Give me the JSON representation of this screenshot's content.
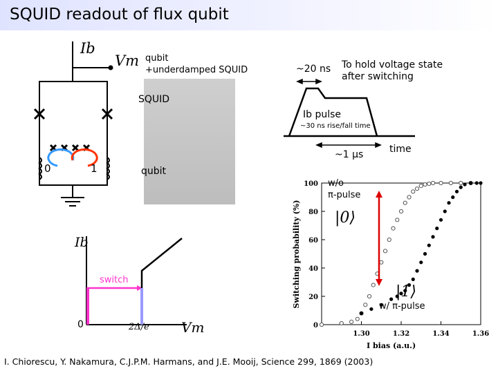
{
  "title": "SQUID readout of flux qubit",
  "circuit": {
    "ib_label": "Ib",
    "vm_label": "Vm",
    "state0": "0",
    "state1": "1"
  },
  "photo": {
    "top_label": "qubit\n+underdamped SQUID",
    "squid_label": "SQUID",
    "qubit_label": "qubit"
  },
  "pulse": {
    "rise_label": "~20 ns",
    "hold_label": "To hold voltage state\nafter switching",
    "ib_pulse_label": "Ib pulse",
    "rise_fall_note": "~30 ns rise/fall time",
    "duration_label": "~1 µs",
    "time_label": "time"
  },
  "iv_curve": {
    "y_label": "Ib",
    "x_label": "Vm",
    "gap_label": "2Δ/e",
    "origin_label": "0",
    "switch_label": "switch",
    "colors": {
      "zero_branch": "#ff33cc",
      "switch_line": "#9999ff"
    }
  },
  "chart_data": {
    "type": "scatter",
    "xlabel": "I bias (a.u.)",
    "ylabel": "Switching probability (%)",
    "xlim": [
      1.28,
      1.36
    ],
    "ylim": [
      0,
      100
    ],
    "x_ticks": [
      "1.30",
      "1.32",
      "1.34",
      "1.36"
    ],
    "y_ticks": [
      "0",
      "20",
      "40",
      "60",
      "80",
      "100"
    ],
    "annotations": {
      "without_pi": "w/o\nπ-pulse",
      "with_pi": "w/ π-pulse",
      "ket0": "|0⟩",
      "ket1": "|1⟩"
    },
    "series": [
      {
        "marker": "open-circle",
        "x": [
          1.28,
          1.29,
          1.295,
          1.298,
          1.3,
          1.302,
          1.304,
          1.306,
          1.308,
          1.31,
          1.312,
          1.314,
          1.316,
          1.318,
          1.32,
          1.322,
          1.324,
          1.326,
          1.328,
          1.33,
          1.332,
          1.334,
          1.336,
          1.34,
          1.345,
          1.35,
          1.355
        ],
        "values": [
          0,
          1,
          2,
          4,
          8,
          14,
          20,
          28,
          36,
          44,
          52,
          60,
          68,
          74,
          80,
          86,
          90,
          94,
          96,
          98,
          99,
          99.5,
          100,
          100,
          100,
          100,
          100
        ]
      },
      {
        "marker": "filled-circle",
        "x": [
          1.3,
          1.305,
          1.31,
          1.315,
          1.318,
          1.32,
          1.322,
          1.324,
          1.326,
          1.328,
          1.33,
          1.332,
          1.334,
          1.336,
          1.338,
          1.34,
          1.342,
          1.344,
          1.346,
          1.348,
          1.35,
          1.352,
          1.355,
          1.358,
          1.36
        ],
        "values": [
          8,
          11,
          14,
          18,
          20,
          22,
          24,
          28,
          32,
          38,
          44,
          50,
          56,
          62,
          68,
          74,
          80,
          86,
          90,
          94,
          97,
          99,
          100,
          100,
          100
        ]
      }
    ]
  },
  "footer": "I. Chiorescu, Y. Nakamura, C.J.P.M. Harmans, and J.E. Mooij, Science 299, 1869 (2003)"
}
